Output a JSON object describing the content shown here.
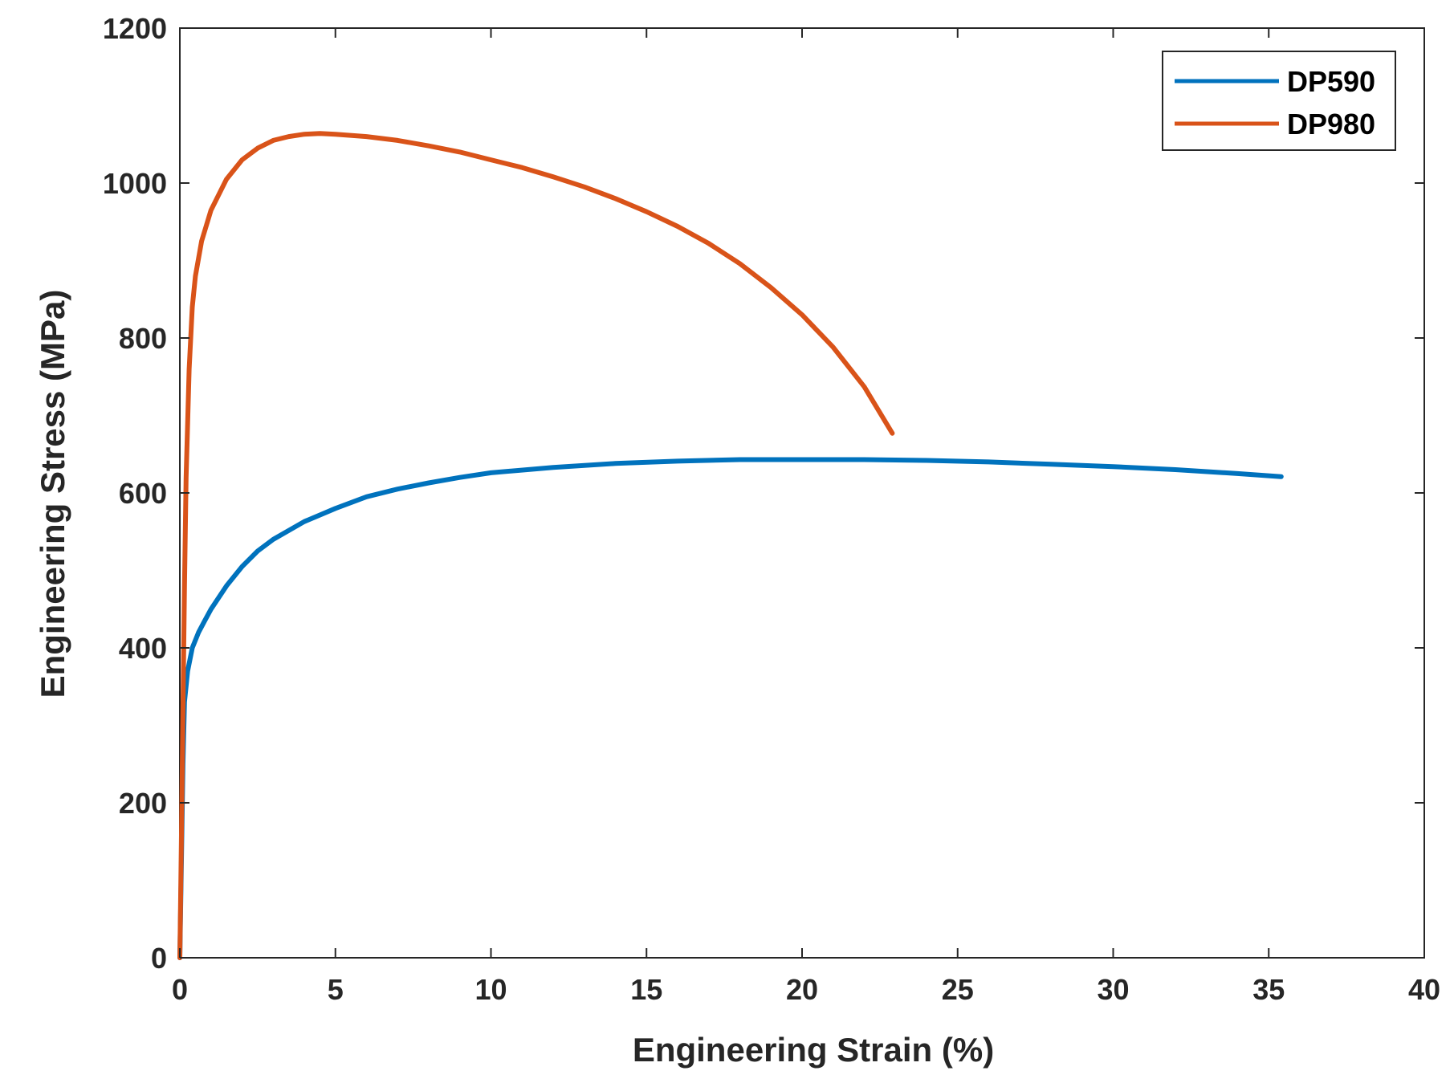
{
  "chart_data": {
    "type": "line",
    "title": "",
    "xlabel": "Engineering Strain (%)",
    "ylabel": "Engineering Stress (MPa)",
    "xlim": [
      0,
      40
    ],
    "ylim": [
      0,
      1200
    ],
    "grid": false,
    "legend_position": "top-right",
    "x_ticks": [
      0,
      5,
      10,
      15,
      20,
      25,
      30,
      35,
      40
    ],
    "y_ticks": [
      0,
      200,
      400,
      600,
      800,
      1000,
      1200
    ],
    "series": [
      {
        "name": "DP590",
        "color": "#0072BD",
        "points": [
          [
            0,
            0
          ],
          [
            0.05,
            120
          ],
          [
            0.1,
            250
          ],
          [
            0.15,
            330
          ],
          [
            0.25,
            370
          ],
          [
            0.4,
            400
          ],
          [
            0.6,
            420
          ],
          [
            0.8,
            435
          ],
          [
            1.0,
            450
          ],
          [
            1.5,
            480
          ],
          [
            2.0,
            505
          ],
          [
            2.5,
            525
          ],
          [
            3.0,
            540
          ],
          [
            4.0,
            563
          ],
          [
            5.0,
            580
          ],
          [
            6.0,
            595
          ],
          [
            7.0,
            605
          ],
          [
            8.0,
            613
          ],
          [
            9.0,
            620
          ],
          [
            10.0,
            626
          ],
          [
            12.0,
            633
          ],
          [
            14.0,
            638
          ],
          [
            16.0,
            641
          ],
          [
            18.0,
            643
          ],
          [
            20.0,
            643
          ],
          [
            22.0,
            643
          ],
          [
            24.0,
            642
          ],
          [
            26.0,
            640
          ],
          [
            28.0,
            637
          ],
          [
            30.0,
            634
          ],
          [
            32.0,
            630
          ],
          [
            34.0,
            625
          ],
          [
            35.4,
            621
          ]
        ]
      },
      {
        "name": "DP980",
        "color": "#D95319",
        "points": [
          [
            0,
            0
          ],
          [
            0.05,
            150
          ],
          [
            0.1,
            320
          ],
          [
            0.15,
            480
          ],
          [
            0.2,
            620
          ],
          [
            0.3,
            760
          ],
          [
            0.4,
            840
          ],
          [
            0.5,
            880
          ],
          [
            0.7,
            925
          ],
          [
            1.0,
            965
          ],
          [
            1.5,
            1005
          ],
          [
            2.0,
            1030
          ],
          [
            2.5,
            1045
          ],
          [
            3.0,
            1055
          ],
          [
            3.5,
            1060
          ],
          [
            4.0,
            1063
          ],
          [
            4.5,
            1064
          ],
          [
            5.0,
            1063
          ],
          [
            6.0,
            1060
          ],
          [
            7.0,
            1055
          ],
          [
            8.0,
            1048
          ],
          [
            9.0,
            1040
          ],
          [
            10.0,
            1030
          ],
          [
            11.0,
            1020
          ],
          [
            12.0,
            1008
          ],
          [
            13.0,
            995
          ],
          [
            14.0,
            980
          ],
          [
            15.0,
            963
          ],
          [
            16.0,
            944
          ],
          [
            17.0,
            922
          ],
          [
            18.0,
            896
          ],
          [
            19.0,
            865
          ],
          [
            20.0,
            830
          ],
          [
            21.0,
            788
          ],
          [
            22.0,
            737
          ],
          [
            22.9,
            677
          ]
        ]
      }
    ]
  }
}
